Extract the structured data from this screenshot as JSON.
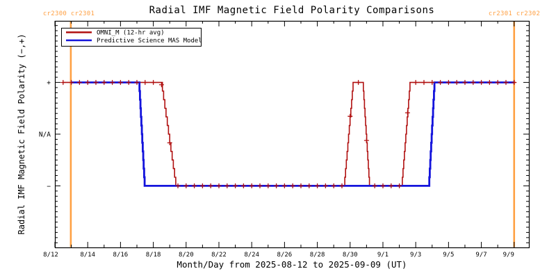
{
  "header": {
    "title": "Radial IMF Magnetic Field Polarity Comparisons",
    "carrington_left": "cr2300 cr2301",
    "carrington_right": "cr2301 cr2302"
  },
  "chart_data": {
    "type": "line",
    "subtype": "step-polarity-timeline",
    "title": "Radial IMF Magnetic Field Polarity Comparisons",
    "xlabel": "Month/Day from 2025-08-12 to 2025-09-09 (UT)",
    "ylabel": "Radial IMF Magnetic Field Polarity (−,+)",
    "x_unit_days_since": "2025-08-12 00:00 UT",
    "xlim": [
      0,
      28.9
    ],
    "ylim": [
      -2.19,
      2.19
    ],
    "grid": false,
    "legend_position": "top-left",
    "axis_color": "#000000",
    "x_major_ticks": [
      {
        "day": 0,
        "label": "8/12"
      },
      {
        "day": 2,
        "label": "8/14"
      },
      {
        "day": 4,
        "label": "8/16"
      },
      {
        "day": 6,
        "label": "8/18"
      },
      {
        "day": 8,
        "label": "8/20"
      },
      {
        "day": 10,
        "label": "8/22"
      },
      {
        "day": 12,
        "label": "8/24"
      },
      {
        "day": 14,
        "label": "8/26"
      },
      {
        "day": 16,
        "label": "8/28"
      },
      {
        "day": 18,
        "label": "8/30"
      },
      {
        "day": 20,
        "label": "9/1"
      },
      {
        "day": 22,
        "label": "9/3"
      },
      {
        "day": 24,
        "label": "9/5"
      },
      {
        "day": 26,
        "label": "9/7"
      },
      {
        "day": 28,
        "label": "9/9"
      }
    ],
    "x_minor_tick_days": [
      1,
      3,
      5,
      7,
      9,
      11,
      13,
      15,
      17,
      19,
      21,
      23,
      25,
      27
    ],
    "y_major_ticks": [
      {
        "value": 1,
        "label": "+"
      },
      {
        "value": 0,
        "label": "N/A"
      },
      {
        "value": -1,
        "label": "−"
      }
    ],
    "y_minor_tick_step": 0.1,
    "reference_lines": [
      {
        "day": 0.97,
        "label": "cr2300 cr2301",
        "color": "#ffa043"
      },
      {
        "day": 28.0,
        "label": "cr2301 cr2302",
        "color": "#ffa043"
      }
    ],
    "series": [
      {
        "name": "OMNI_M (12-hr avg)",
        "color": "#b01010",
        "line_width": 1.6,
        "marker": "plus",
        "marker_interval_days": 0.5,
        "marker_range_days": [
          0.5,
          28.0
        ],
        "points_day_polarity": [
          [
            0.5,
            1
          ],
          [
            6.48,
            1
          ],
          [
            7.37,
            -1
          ],
          [
            17.63,
            -1
          ],
          [
            18.18,
            1
          ],
          [
            18.77,
            1
          ],
          [
            19.18,
            -1
          ],
          [
            21.14,
            -1
          ],
          [
            21.65,
            1
          ],
          [
            28.1,
            1
          ]
        ]
      },
      {
        "name": "Predictive Science MAS Model",
        "color": "#1414dc",
        "line_width": 2.8,
        "marker": "none",
        "points_day_polarity": [
          [
            1.0,
            1
          ],
          [
            5.13,
            1
          ],
          [
            5.47,
            -1
          ],
          [
            22.8,
            -1
          ],
          [
            23.14,
            1
          ],
          [
            28.0,
            1
          ]
        ]
      }
    ],
    "polarity_levels": {
      "positive": 1,
      "not_available": 0,
      "negative": -1
    }
  }
}
